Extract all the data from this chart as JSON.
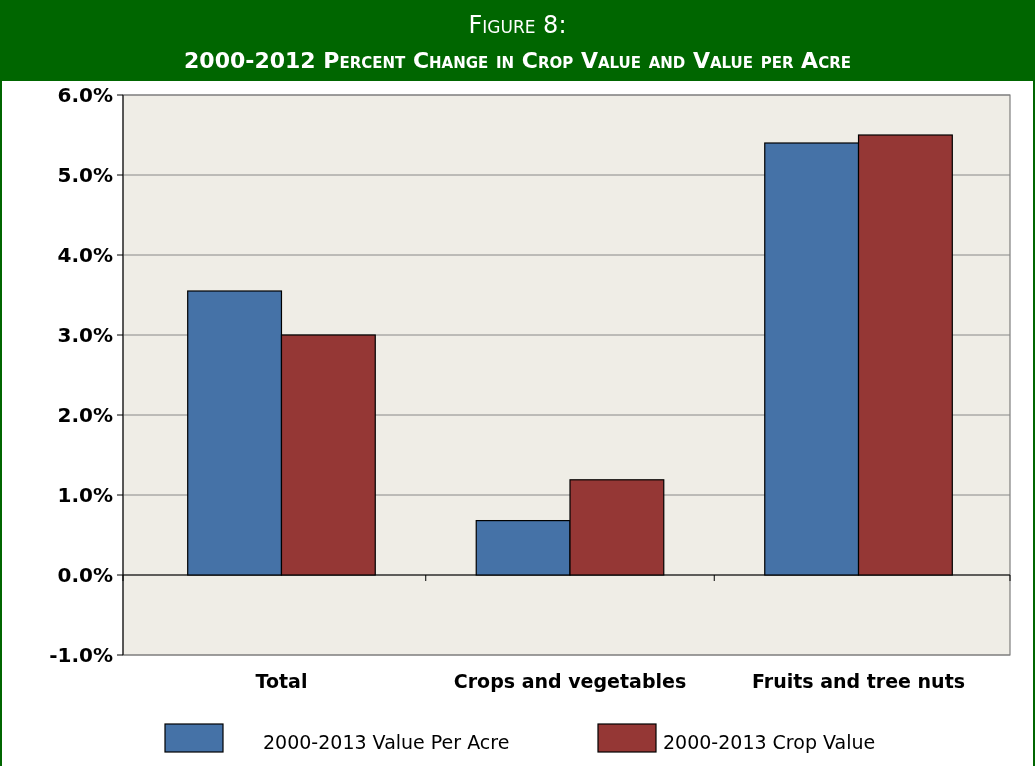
{
  "chart_data": {
    "type": "bar",
    "title": "Figure 8:",
    "subtitle": "2000-2012 Percent Change in Crop Value and Value per Acre",
    "categories": [
      "Total",
      "Crops and vegetables",
      "Fruits and tree nuts"
    ],
    "series": [
      {
        "name": "2000-2013 Value Per Acre",
        "color": "#4572a7",
        "values": [
          3.55,
          0.68,
          5.4
        ]
      },
      {
        "name": "2000-2013 Crop Value",
        "color": "#953735",
        "values": [
          3.0,
          1.19,
          5.5
        ]
      }
    ],
    "ylim": [
      -1,
      6
    ],
    "yticks": [
      {
        "value": -1,
        "label": "-1.0%"
      },
      {
        "value": 0,
        "label": "0.0%"
      },
      {
        "value": 1,
        "label": "1.0%"
      },
      {
        "value": 2,
        "label": "2.0%"
      },
      {
        "value": 3,
        "label": "3.0%"
      },
      {
        "value": 4,
        "label": "4.0%"
      },
      {
        "value": 5,
        "label": "5.0%"
      },
      {
        "value": 6,
        "label": "6.0%"
      }
    ],
    "grid": "y",
    "legend": "bottom"
  }
}
